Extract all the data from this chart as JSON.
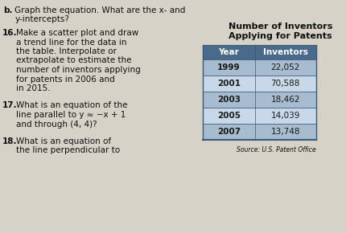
{
  "title_table": "Number of Inventors\nApplying for Patents",
  "header": [
    "Year",
    "Inventors"
  ],
  "rows": [
    [
      "1999",
      "22,052"
    ],
    [
      "2001",
      "70,588"
    ],
    [
      "2003",
      "18,462"
    ],
    [
      "2005",
      "14,039"
    ],
    [
      "2007",
      "13,748"
    ]
  ],
  "source": "Source: U.S. Patent Office",
  "bg_color": "#d6d2c8",
  "table_header_bg": "#4a6a8c",
  "table_row_dark": "#a8bccf",
  "table_row_light": "#c8d8e8",
  "table_border": "#3a5a7a",
  "header_text_color": "#ffffff",
  "row_text_color": "#1a1a1a",
  "text_color": "#111111",
  "bold_num_color": "#111111"
}
